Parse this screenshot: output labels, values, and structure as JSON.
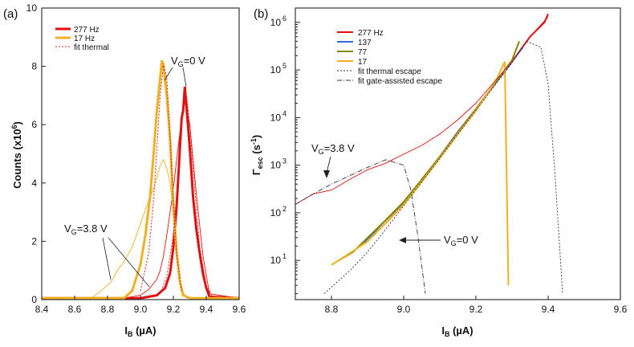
{
  "chart_data": [
    {
      "panel": "(a)",
      "type": "line",
      "xlabel": "I_B (µA)",
      "ylabel": "Counts (x10^6)",
      "xlim": [
        8.4,
        9.6
      ],
      "ylim": [
        0,
        10
      ],
      "xticks": [
        8.4,
        8.6,
        8.8,
        9.0,
        9.2,
        9.4,
        9.6
      ],
      "yticks": [
        0,
        2,
        4,
        6,
        8,
        10
      ],
      "legend": [
        "277 Hz",
        "17 Hz",
        "fit thermal"
      ],
      "legend_position": "top-left",
      "annotations": [
        "V_G=0 V",
        "V_G=3.8 V"
      ],
      "series": [
        {
          "name": "277 Hz",
          "color": "#e01010",
          "style": "thick",
          "x": [
            8.4,
            9.0,
            9.1,
            9.15,
            9.18,
            9.2,
            9.22,
            9.24,
            9.25,
            9.26,
            9.27,
            9.28,
            9.3,
            9.32,
            9.34,
            9.36,
            9.38,
            9.4,
            9.42,
            9.6
          ],
          "y": [
            0.05,
            0.05,
            0.15,
            0.4,
            0.9,
            1.8,
            3.2,
            5.2,
            6.2,
            6.5,
            7.3,
            6.6,
            5.2,
            3.5,
            2.4,
            1.6,
            0.9,
            0.4,
            0.1,
            0.05
          ]
        },
        {
          "name": "277 Hz V_G=3.8 V",
          "color": "#e01010",
          "style": "thin",
          "x": [
            8.4,
            8.9,
            9.0,
            9.05,
            9.1,
            9.12,
            9.14,
            9.16,
            9.18,
            9.2,
            9.22,
            9.25,
            9.27,
            9.3,
            9.34,
            9.38,
            9.42,
            9.6
          ],
          "y": [
            0.05,
            0.05,
            0.15,
            0.35,
            0.7,
            1.0,
            1.5,
            2.2,
            3.0,
            3.8,
            4.8,
            6.2,
            6.8,
            6.0,
            3.6,
            1.5,
            0.2,
            0.05
          ]
        },
        {
          "name": "17 Hz",
          "color": "#f0b020",
          "style": "thick",
          "x": [
            8.4,
            8.9,
            8.95,
            9.0,
            9.03,
            9.06,
            9.08,
            9.1,
            9.12,
            9.13,
            9.14,
            9.15,
            9.16,
            9.18,
            9.2,
            9.22,
            9.24,
            9.26,
            9.3,
            9.6
          ],
          "y": [
            0.05,
            0.05,
            0.3,
            1.2,
            2.2,
            3.6,
            5.0,
            6.5,
            7.6,
            8.2,
            8.0,
            7.5,
            7.0,
            5.5,
            3.2,
            1.6,
            0.6,
            0.15,
            0.05,
            0.05
          ]
        },
        {
          "name": "17 Hz V_G=3.8 V",
          "color": "#f0b020",
          "style": "thin",
          "x": [
            8.4,
            8.7,
            8.76,
            8.82,
            8.86,
            8.9,
            8.95,
            9.0,
            9.05,
            9.08,
            9.1,
            9.12,
            9.14,
            9.16,
            9.18,
            9.2,
            9.22,
            9.24,
            9.26,
            9.3,
            9.6
          ],
          "y": [
            0.05,
            0.05,
            0.3,
            0.6,
            1.0,
            1.3,
            1.8,
            2.6,
            3.4,
            3.8,
            4.2,
            4.6,
            4.8,
            4.5,
            4.0,
            3.0,
            1.6,
            0.6,
            0.2,
            0.05,
            0.05
          ]
        },
        {
          "name": "fit thermal",
          "color": "#cc2222",
          "style": "dashed",
          "x": [
            9.0,
            9.05,
            9.08,
            9.1,
            9.12,
            9.14,
            9.16,
            9.18,
            9.2,
            9.22,
            9.25
          ],
          "y": [
            0.3,
            1.6,
            3.4,
            5.2,
            7.0,
            8.1,
            7.6,
            5.6,
            3.4,
            1.6,
            0.3
          ]
        },
        {
          "name": "fit thermal 277",
          "color": "#cc2222",
          "style": "dashed",
          "x": [
            9.12,
            9.16,
            9.2,
            9.23,
            9.26,
            9.28,
            9.3,
            9.33,
            9.36,
            9.4,
            9.44
          ],
          "y": [
            0.2,
            0.8,
            2.2,
            4.4,
            6.6,
            7.0,
            6.0,
            3.8,
            1.8,
            0.5,
            0.1
          ]
        }
      ]
    },
    {
      "panel": "(b)",
      "type": "line",
      "xlabel": "I_B (µA)",
      "ylabel": "Γ_esc (s^-1)",
      "yscale": "log",
      "xlim": [
        8.7,
        9.6
      ],
      "ylim": [
        1.5,
        2000000
      ],
      "xticks": [
        8.8,
        9.0,
        9.2,
        9.4,
        9.6
      ],
      "yticks": [
        "10^1",
        "10^2",
        "10^3",
        "10^4",
        "10^5",
        "10^6"
      ],
      "legend": [
        "277 Hz",
        "137",
        "77",
        "17",
        "fit thermal escape",
        "fit gate-assisted escape"
      ],
      "legend_position": "top-left",
      "annotations": [
        "V_G=3.8 V",
        "V_G=0 V"
      ],
      "series": [
        {
          "name": "277 Hz",
          "color": "#e01010",
          "x": [
            8.95,
            9.0,
            9.05,
            9.1,
            9.15,
            9.2,
            9.25,
            9.3,
            9.35,
            9.39,
            9.4
          ],
          "y": [
            60,
            150,
            500,
            1500,
            5000,
            15000,
            50000,
            150000,
            500000,
            1000000,
            1500000
          ]
        },
        {
          "name": "137",
          "color": "#3366dd",
          "x": [
            8.88,
            8.92,
            8.95,
            9.0,
            9.05,
            9.1,
            9.15,
            9.2,
            9.25,
            9.3,
            9.33
          ],
          "y": [
            20,
            40,
            70,
            160,
            480,
            1500,
            5000,
            15000,
            48000,
            150000,
            300000
          ]
        },
        {
          "name": "77",
          "color": "#888800",
          "x": [
            8.82,
            8.86,
            8.9,
            8.95,
            9.0,
            9.05,
            9.1,
            9.15,
            9.2,
            9.25,
            9.3,
            9.32
          ],
          "y": [
            10,
            15,
            30,
            70,
            170,
            500,
            1500,
            4800,
            15000,
            50000,
            160000,
            400000
          ]
        },
        {
          "name": "17",
          "color": "#f0b020",
          "x": [
            8.8,
            8.85,
            8.9,
            8.95,
            9.0,
            9.05,
            9.1,
            9.15,
            9.2,
            9.24,
            9.26,
            9.28,
            9.29
          ],
          "y": [
            8,
            14,
            25,
            60,
            150,
            450,
            1400,
            4500,
            14000,
            40000,
            70000,
            150000,
            3
          ]
        },
        {
          "name": "277 Hz V_G=3.8 V",
          "color": "#e01010",
          "x": [
            8.7,
            8.75,
            8.8,
            8.85,
            8.9,
            8.95,
            9.0,
            9.05,
            9.1,
            9.15,
            9.2,
            9.25,
            9.3,
            9.35,
            9.4
          ],
          "y": [
            150,
            250,
            300,
            500,
            800,
            1100,
            1700,
            2600,
            4500,
            9000,
            20000,
            55000,
            150000,
            500000,
            1300000
          ]
        },
        {
          "name": "fit thermal escape",
          "color": "#333333",
          "x": [
            8.78,
            8.85,
            8.9,
            8.95,
            9.0,
            9.05,
            9.1,
            9.15,
            9.2,
            9.25,
            9.3,
            9.34,
            9.38,
            9.4,
            9.42,
            9.44
          ],
          "y": [
            2,
            6,
            15,
            45,
            140,
            440,
            1400,
            4500,
            14000,
            45000,
            140000,
            400000,
            300000,
            50000,
            500,
            2
          ]
        },
        {
          "name": "fit gate-assisted escape",
          "color": "#333333",
          "x": [
            8.7,
            8.75,
            8.8,
            8.85,
            8.9,
            8.95,
            9.0,
            9.02,
            9.04,
            9.06
          ],
          "y": [
            150,
            250,
            400,
            600,
            900,
            1300,
            1000,
            300,
            30,
            2
          ]
        }
      ]
    }
  ]
}
